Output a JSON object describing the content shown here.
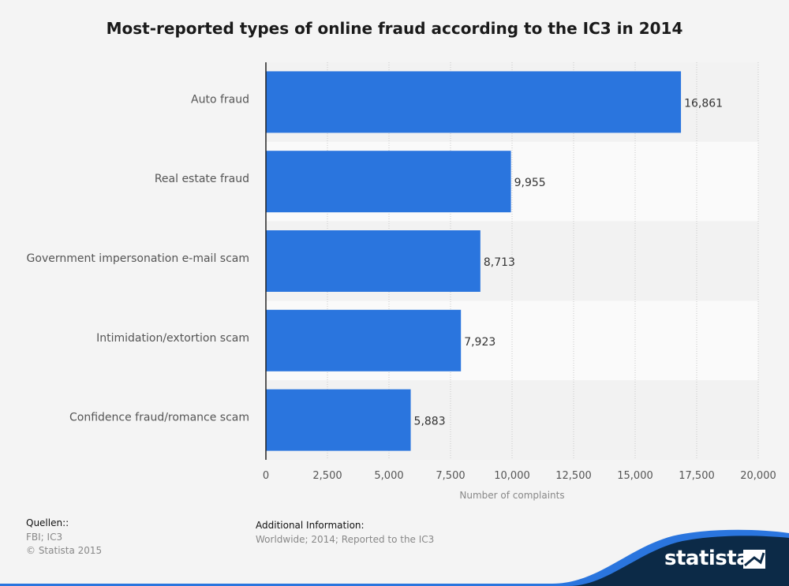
{
  "title": "Most-reported types of online fraud according to the IC3 in 2014",
  "chart_data": {
    "type": "bar",
    "orientation": "horizontal",
    "categories": [
      "Auto fraud",
      "Real estate fraud",
      "Government impersonation e-mail scam",
      "Intimidation/extortion scam",
      "Confidence fraud/romance scam"
    ],
    "values": [
      16861,
      9955,
      8713,
      7923,
      5883
    ],
    "value_labels": [
      "16,861",
      "9,955",
      "8,713",
      "7,923",
      "5,883"
    ],
    "xlabel": "Number of complaints",
    "ylabel": "",
    "xlim": [
      0,
      20000
    ],
    "xticks": [
      0,
      2500,
      5000,
      7500,
      10000,
      12500,
      15000,
      17500,
      20000
    ],
    "xtick_labels": [
      "0",
      "2,500",
      "5,000",
      "7,500",
      "10,000",
      "12,500",
      "15,000",
      "17,500",
      "20,000"
    ],
    "grid": "vertical dotted",
    "bar_color": "#2a75de"
  },
  "footer": {
    "sources_label": "Quellen::",
    "sources_line1": "FBI; IC3",
    "sources_line2": "© Statista 2015",
    "info_label": "Additional Information:",
    "info_text": "Worldwide; 2014; Reported to the IC3"
  },
  "brand": {
    "name": "statista",
    "color": "#0c2a47",
    "accent": "#2a75de"
  }
}
